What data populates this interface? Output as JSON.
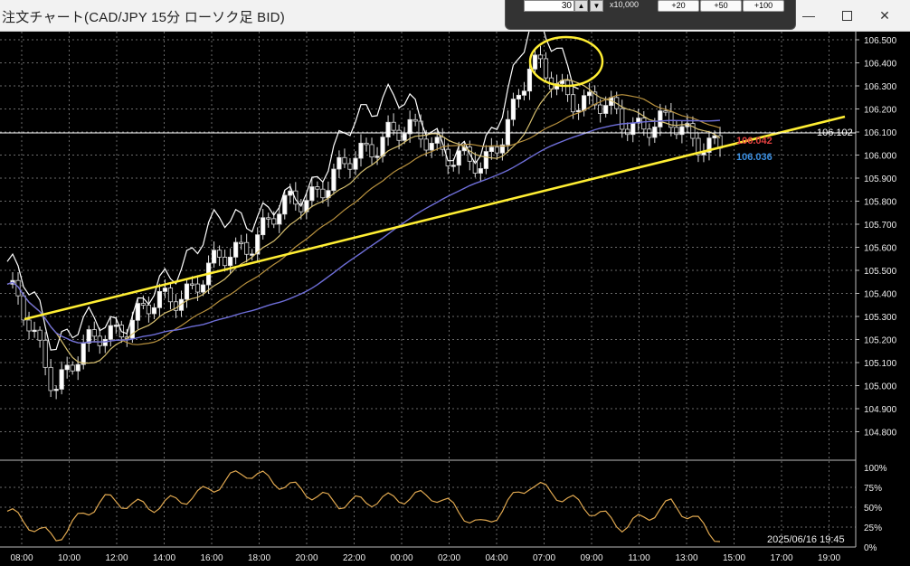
{
  "window": {
    "title": "注文チャート(CAD/JPY 15分 ローソク足 BID)",
    "minimize_icon": "minimize-icon",
    "maximize_icon": "maximize-icon",
    "close_icon": "close-icon"
  },
  "order_popup": {
    "lot_value": "30",
    "unit_label": "x10,000",
    "buttons": [
      "+20",
      "+50",
      "+100"
    ]
  },
  "price_axis": {
    "ticks": [
      "106.500",
      "106.400",
      "106.300",
      "106.200",
      "106.100",
      "106.000",
      "105.900",
      "105.800",
      "105.700",
      "105.600",
      "105.500",
      "105.400",
      "105.300",
      "105.200",
      "105.100",
      "105.000",
      "104.900",
      "104.800"
    ]
  },
  "price_labels": {
    "current_line": "106.102",
    "ask": "106.042",
    "bid": "106.036"
  },
  "oscillator_axis": {
    "ticks": [
      "100%",
      "75%",
      "50%",
      "25%",
      "0%"
    ]
  },
  "time_axis": {
    "ticks": [
      "08:00",
      "10:00",
      "12:00",
      "14:00",
      "16:00",
      "18:00",
      "20:00",
      "22:00",
      "00:00",
      "02:00",
      "04:00",
      "07:00",
      "09:00",
      "11:00",
      "13:00",
      "15:00",
      "17:00",
      "19:00"
    ]
  },
  "timestamp": "2025/06/16 19:45",
  "colors": {
    "background": "#000000",
    "grid": "#6a6a6a",
    "white_line": "#ffffff",
    "trendline": "#ffee33",
    "ma_short": "#d7c070",
    "ma_mid": "#b8913e",
    "ma_long": "#6e6ed8",
    "oscillator": "#e0a850",
    "ask_label": "#e04040",
    "bid_label": "#3a8ee0"
  },
  "chart_data": {
    "type": "line",
    "x": [
      "08:00",
      "10:00",
      "12:00",
      "14:00",
      "16:00",
      "18:00",
      "20:00",
      "22:00",
      "00:00",
      "02:00",
      "04:00",
      "07:00",
      "09:00",
      "11:00",
      "13:00",
      "14:30"
    ],
    "series": [
      {
        "values": [
          105.44,
          105.02,
          105.22,
          105.33,
          105.45,
          105.62,
          105.79,
          105.92,
          106.11,
          106.06,
          105.92,
          106.38,
          106.25,
          106.15,
          106.12,
          106.04
        ]
      }
    ],
    "ylim": [
      104.75,
      106.53
    ],
    "oscillator": {
      "x": [
        "08:00",
        "10:00",
        "12:00",
        "14:00",
        "16:00",
        "18:00",
        "20:00",
        "22:00",
        "00:00",
        "02:00",
        "04:00",
        "07:00",
        "09:00",
        "11:00",
        "13:00",
        "14:30"
      ],
      "values": [
        45,
        10,
        60,
        50,
        65,
        95,
        75,
        55,
        60,
        65,
        25,
        80,
        55,
        25,
        55,
        10
      ],
      "ylim": [
        0,
        100
      ]
    }
  }
}
